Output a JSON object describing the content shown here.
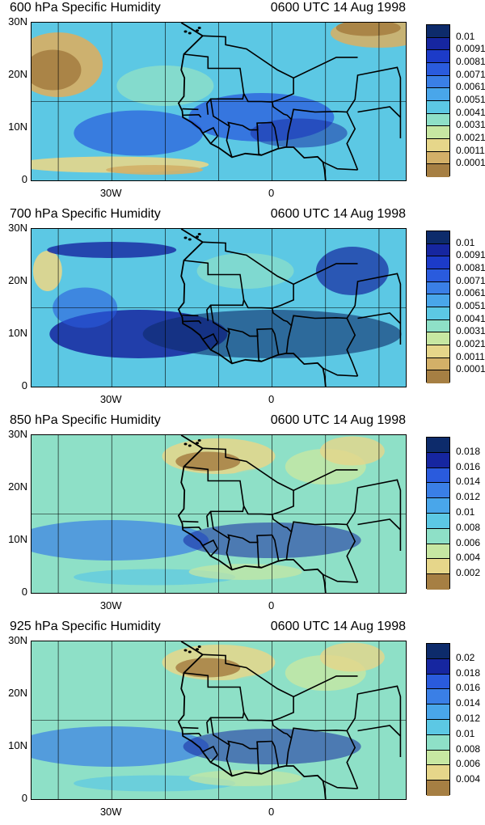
{
  "panels": [
    {
      "title_left": "600 hPa Specific Humidity",
      "title_right": "0600 UTC 14 Aug 1998",
      "colorbar_labels": [
        "0.01",
        "0.0091",
        "0.0081",
        "0.0071",
        "0.0061",
        "0.0051",
        "0.0041",
        "0.0031",
        "0.0021",
        "0.0011",
        "0.0001"
      ],
      "colorbar_colors": [
        "#0d2b6b",
        "#1626a0",
        "#1c3bc8",
        "#2a5bdd",
        "#3a7fe6",
        "#49a6ea",
        "#5cc8e4",
        "#8ee0c7",
        "#c7e7a2",
        "#e6d68a",
        "#d3b068",
        "#a67f43"
      ],
      "moisture_pattern": "dry"
    },
    {
      "title_left": "700 hPa Specific Humidity",
      "title_right": "0600 UTC 14 Aug 1998",
      "colorbar_labels": [
        "0.01",
        "0.0091",
        "0.0081",
        "0.0071",
        "0.0061",
        "0.0051",
        "0.0041",
        "0.0031",
        "0.0021",
        "0.0011",
        "0.0001"
      ],
      "colorbar_colors": [
        "#0d2b6b",
        "#1626a0",
        "#1c3bc8",
        "#2a5bdd",
        "#3a7fe6",
        "#49a6ea",
        "#5cc8e4",
        "#8ee0c7",
        "#c7e7a2",
        "#e6d68a",
        "#d3b068",
        "#a67f43"
      ],
      "moisture_pattern": "moist"
    },
    {
      "title_left": "850 hPa Specific Humidity",
      "title_right": "0600 UTC 14 Aug 1998",
      "colorbar_labels": [
        "0.018",
        "0.016",
        "0.014",
        "0.012",
        "0.01",
        "0.008",
        "0.006",
        "0.004",
        "0.002"
      ],
      "colorbar_colors": [
        "#0d2b6b",
        "#1626a0",
        "#2a5bdd",
        "#3a7fe6",
        "#49a6ea",
        "#5cc8e4",
        "#8ee0c7",
        "#c7e7a2",
        "#e6d68a",
        "#a67f43"
      ],
      "moisture_pattern": "mixed"
    },
    {
      "title_left": "925 hPa Specific Humidity",
      "title_right": "0600 UTC 14 Aug 1998",
      "colorbar_labels": [
        "0.02",
        "0.018",
        "0.016",
        "0.014",
        "0.012",
        "0.01",
        "0.008",
        "0.006",
        "0.004"
      ],
      "colorbar_colors": [
        "#0d2b6b",
        "#1626a0",
        "#2a5bdd",
        "#3a7fe6",
        "#49a6ea",
        "#5cc8e4",
        "#8ee0c7",
        "#c7e7a2",
        "#e6d68a",
        "#a67f43"
      ],
      "moisture_pattern": "mixed"
    }
  ],
  "lat_labels": [
    "30N",
    "20N",
    "10N",
    "0"
  ],
  "lon_labels": [
    "30W",
    "0"
  ]
}
